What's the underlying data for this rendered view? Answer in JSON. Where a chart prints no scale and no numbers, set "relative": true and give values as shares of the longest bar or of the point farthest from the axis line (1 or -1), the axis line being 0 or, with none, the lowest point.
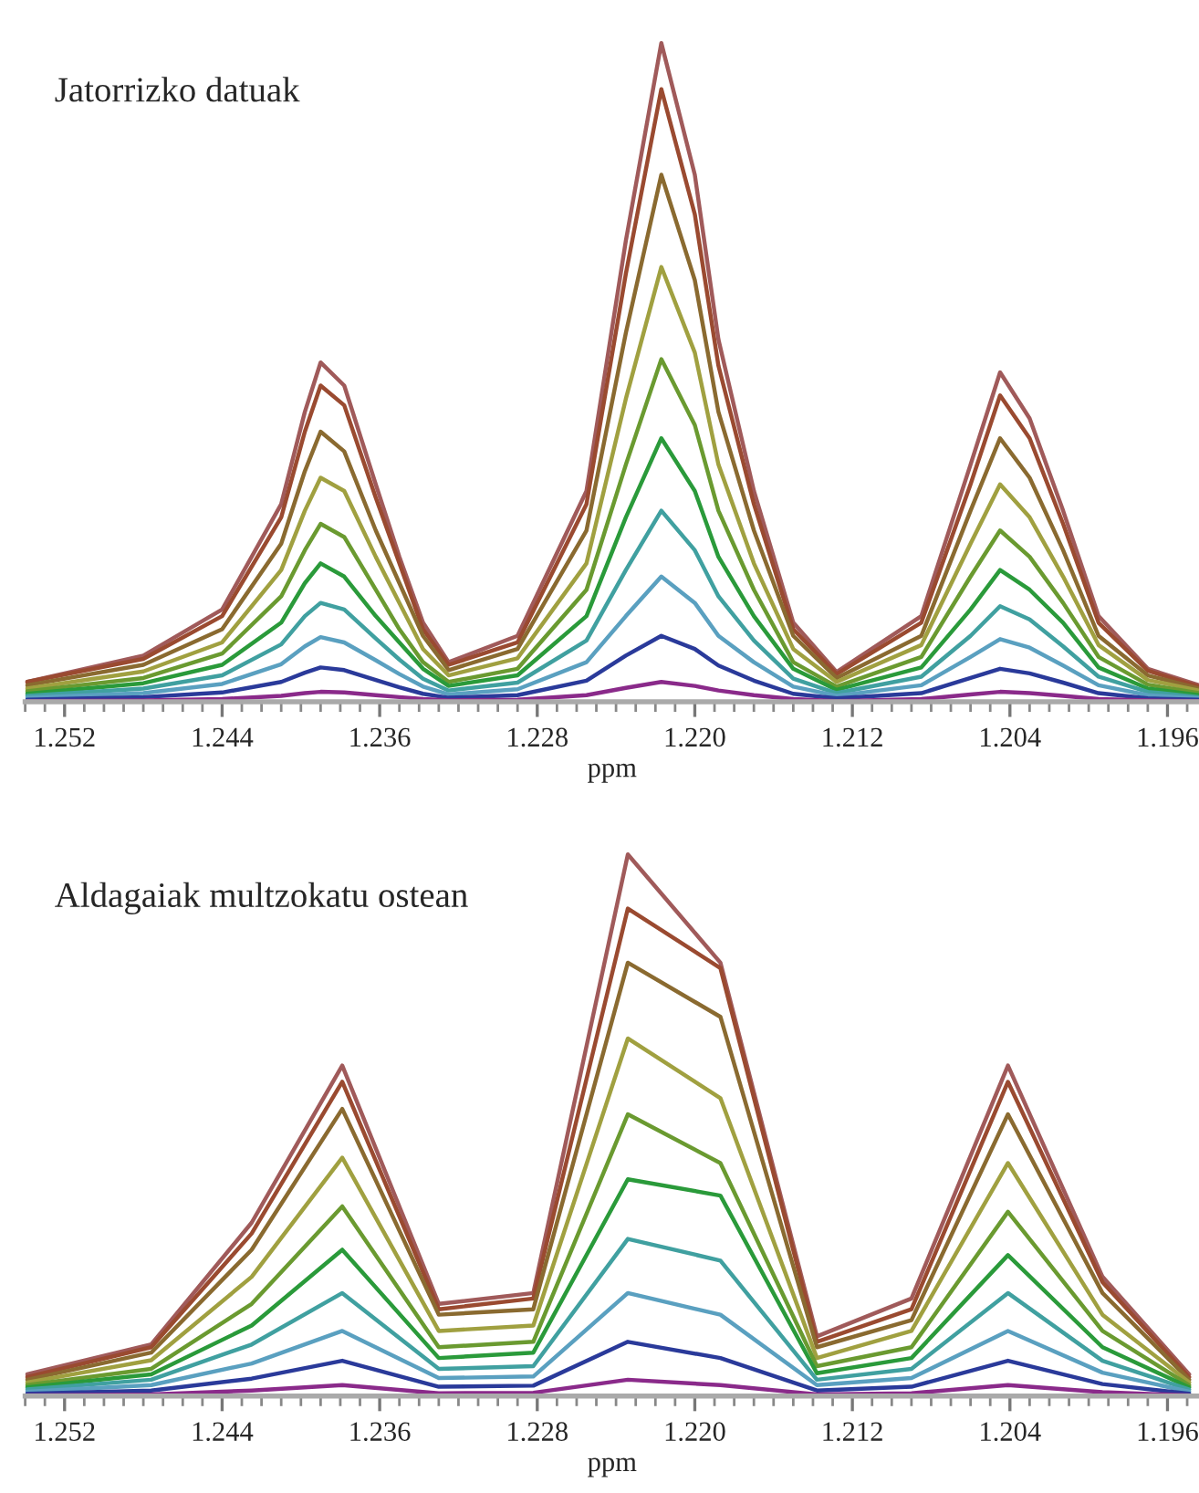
{
  "chart_data": [
    {
      "type": "line",
      "title": "Jatorrizko datuak",
      "xlabel": "ppm",
      "relative": true,
      "tick_labels": "x",
      "x": [
        1.2539,
        1.248,
        1.244,
        1.241,
        1.2398,
        1.239,
        1.2378,
        1.2362,
        1.235,
        1.2338,
        1.2325,
        1.229,
        1.2255,
        1.2235,
        1.2217,
        1.22,
        1.2188,
        1.217,
        1.215,
        1.2128,
        1.2085,
        1.206,
        1.2045,
        1.203,
        1.2013,
        1.1995,
        1.197,
        1.1944
      ],
      "xlim": [
        1.254,
        1.1944
      ],
      "xticks": [
        {
          "value": 1.254,
          "label": null
        },
        {
          "value": 1.253,
          "label": null
        },
        1.252,
        {
          "value": 1.251,
          "label": null
        },
        {
          "value": 1.25,
          "label": null
        },
        {
          "value": 1.249,
          "label": null
        },
        {
          "value": 1.248,
          "label": null
        },
        {
          "value": 1.247,
          "label": null
        },
        {
          "value": 1.246,
          "label": null
        },
        {
          "value": 1.245,
          "label": null
        },
        1.244,
        {
          "value": 1.243,
          "label": null
        },
        {
          "value": 1.242,
          "label": null
        },
        {
          "value": 1.241,
          "label": null
        },
        {
          "value": 1.24,
          "label": null
        },
        {
          "value": 1.239,
          "label": null
        },
        {
          "value": 1.238,
          "label": null
        },
        {
          "value": 1.237,
          "label": null
        },
        1.236,
        {
          "value": 1.235,
          "label": null
        },
        {
          "value": 1.234,
          "label": null
        },
        {
          "value": 1.233,
          "label": null
        },
        {
          "value": 1.232,
          "label": null
        },
        {
          "value": 1.231,
          "label": null
        },
        {
          "value": 1.23,
          "label": null
        },
        {
          "value": 1.229,
          "label": null
        },
        1.228,
        {
          "value": 1.227,
          "label": null
        },
        {
          "value": 1.226,
          "label": null
        },
        {
          "value": 1.225,
          "label": null
        },
        {
          "value": 1.224,
          "label": null
        },
        {
          "value": 1.223,
          "label": null
        },
        {
          "value": 1.222,
          "label": null
        },
        {
          "value": 1.221,
          "label": null
        },
        {
          "value": 1.22,
          "label": "1.220"
        },
        {
          "value": 1.219,
          "label": null
        },
        {
          "value": 1.218,
          "label": null
        },
        {
          "value": 1.217,
          "label": null
        },
        {
          "value": 1.216,
          "label": null
        },
        {
          "value": 1.215,
          "label": null
        },
        {
          "value": 1.214,
          "label": null
        },
        {
          "value": 1.213,
          "label": null
        },
        1.212,
        {
          "value": 1.211,
          "label": null
        },
        {
          "value": 1.21,
          "label": null
        },
        {
          "value": 1.209,
          "label": null
        },
        {
          "value": 1.208,
          "label": null
        },
        {
          "value": 1.207,
          "label": null
        },
        {
          "value": 1.206,
          "label": null
        },
        {
          "value": 1.205,
          "label": null
        },
        1.204,
        {
          "value": 1.203,
          "label": null
        },
        {
          "value": 1.202,
          "label": null
        },
        {
          "value": 1.201,
          "label": null
        },
        {
          "value": 1.2,
          "label": null
        },
        {
          "value": 1.199,
          "label": null
        },
        {
          "value": 1.198,
          "label": null
        },
        {
          "value": 1.197,
          "label": null
        },
        1.196,
        {
          "value": 1.195,
          "label": null
        }
      ],
      "series": [
        {
          "color": "#a05a5a",
          "values": [
            0.03,
            0.07,
            0.14,
            0.3,
            0.44,
            0.515,
            0.48,
            0.33,
            0.22,
            0.12,
            0.06,
            0.1,
            0.32,
            0.7,
            1.0,
            0.8,
            0.55,
            0.32,
            0.12,
            0.045,
            0.13,
            0.36,
            0.5,
            0.43,
            0.29,
            0.13,
            0.05,
            0.025
          ]
        },
        {
          "color": "#9a4a30",
          "values": [
            0.03,
            0.065,
            0.13,
            0.28,
            0.41,
            0.48,
            0.45,
            0.31,
            0.21,
            0.11,
            0.056,
            0.09,
            0.3,
            0.65,
            0.93,
            0.74,
            0.51,
            0.3,
            0.11,
            0.042,
            0.12,
            0.33,
            0.465,
            0.4,
            0.27,
            0.12,
            0.047,
            0.023
          ]
        },
        {
          "color": "#8a6a30",
          "values": [
            0.025,
            0.056,
            0.11,
            0.24,
            0.35,
            0.41,
            0.38,
            0.26,
            0.18,
            0.1,
            0.048,
            0.08,
            0.26,
            0.56,
            0.8,
            0.64,
            0.44,
            0.26,
            0.1,
            0.036,
            0.1,
            0.29,
            0.4,
            0.34,
            0.23,
            0.1,
            0.04,
            0.02
          ]
        },
        {
          "color": "#a0a040",
          "values": [
            0.02,
            0.046,
            0.09,
            0.2,
            0.29,
            0.34,
            0.32,
            0.22,
            0.15,
            0.08,
            0.04,
            0.066,
            0.21,
            0.46,
            0.66,
            0.53,
            0.36,
            0.21,
            0.08,
            0.03,
            0.086,
            0.24,
            0.33,
            0.28,
            0.19,
            0.086,
            0.033,
            0.017
          ]
        },
        {
          "color": "#6a9a30",
          "values": [
            0.016,
            0.036,
            0.073,
            0.16,
            0.23,
            0.27,
            0.25,
            0.17,
            0.11,
            0.06,
            0.03,
            0.05,
            0.17,
            0.36,
            0.52,
            0.42,
            0.29,
            0.17,
            0.06,
            0.023,
            0.068,
            0.19,
            0.26,
            0.22,
            0.15,
            0.068,
            0.026,
            0.013
          ]
        },
        {
          "color": "#2a9a3a",
          "values": [
            0.012,
            0.028,
            0.056,
            0.12,
            0.18,
            0.21,
            0.19,
            0.13,
            0.09,
            0.05,
            0.024,
            0.04,
            0.13,
            0.28,
            0.4,
            0.32,
            0.22,
            0.13,
            0.05,
            0.018,
            0.052,
            0.14,
            0.2,
            0.17,
            0.12,
            0.052,
            0.02,
            0.01
          ]
        },
        {
          "color": "#40a0a0",
          "values": [
            0.009,
            0.02,
            0.04,
            0.087,
            0.13,
            0.15,
            0.14,
            0.096,
            0.064,
            0.035,
            0.017,
            0.029,
            0.093,
            0.2,
            0.29,
            0.23,
            0.16,
            0.093,
            0.035,
            0.013,
            0.038,
            0.1,
            0.145,
            0.125,
            0.084,
            0.038,
            0.015,
            0.007
          ]
        },
        {
          "color": "#5aa0c0",
          "values": [
            0.006,
            0.013,
            0.027,
            0.057,
            0.084,
            0.098,
            0.09,
            0.063,
            0.042,
            0.023,
            0.011,
            0.019,
            0.06,
            0.13,
            0.19,
            0.15,
            0.1,
            0.06,
            0.023,
            0.009,
            0.025,
            0.068,
            0.095,
            0.082,
            0.055,
            0.025,
            0.01,
            0.005
          ]
        },
        {
          "color": "#2a3a9a",
          "values": [
            0.003,
            0.007,
            0.014,
            0.03,
            0.044,
            0.052,
            0.048,
            0.033,
            0.022,
            0.012,
            0.006,
            0.01,
            0.032,
            0.07,
            0.1,
            0.08,
            0.055,
            0.032,
            0.012,
            0.005,
            0.013,
            0.036,
            0.05,
            0.043,
            0.029,
            0.013,
            0.005,
            0.003
          ]
        },
        {
          "color": "#8a2a8a",
          "values": [
            0.001,
            0.002,
            0.004,
            0.009,
            0.013,
            0.015,
            0.014,
            0.01,
            0.007,
            0.004,
            0.002,
            0.003,
            0.01,
            0.021,
            0.03,
            0.024,
            0.017,
            0.01,
            0.004,
            0.001,
            0.004,
            0.011,
            0.015,
            0.013,
            0.009,
            0.004,
            0.002,
            0.001
          ]
        }
      ]
    },
    {
      "type": "line",
      "title": "Aldagaiak multzokatu ostean",
      "xlabel": "ppm",
      "relative": true,
      "tick_labels": "x",
      "x": [
        1.2539,
        1.2476,
        1.2425,
        1.2379,
        1.233,
        1.2282,
        1.2234,
        1.2187,
        1.2138,
        1.209,
        1.2041,
        1.1993,
        1.1949
      ],
      "xlim": [
        1.254,
        1.1944
      ],
      "xticks": [
        {
          "value": 1.254,
          "label": null
        },
        {
          "value": 1.253,
          "label": null
        },
        1.252,
        {
          "value": 1.251,
          "label": null
        },
        {
          "value": 1.25,
          "label": null
        },
        {
          "value": 1.249,
          "label": null
        },
        {
          "value": 1.248,
          "label": null
        },
        {
          "value": 1.247,
          "label": null
        },
        {
          "value": 1.246,
          "label": null
        },
        {
          "value": 1.245,
          "label": null
        },
        1.244,
        {
          "value": 1.243,
          "label": null
        },
        {
          "value": 1.242,
          "label": null
        },
        {
          "value": 1.241,
          "label": null
        },
        {
          "value": 1.24,
          "label": null
        },
        {
          "value": 1.239,
          "label": null
        },
        {
          "value": 1.238,
          "label": null
        },
        {
          "value": 1.237,
          "label": null
        },
        1.236,
        {
          "value": 1.235,
          "label": null
        },
        {
          "value": 1.234,
          "label": null
        },
        {
          "value": 1.233,
          "label": null
        },
        {
          "value": 1.232,
          "label": null
        },
        {
          "value": 1.231,
          "label": null
        },
        {
          "value": 1.23,
          "label": null
        },
        {
          "value": 1.229,
          "label": null
        },
        1.228,
        {
          "value": 1.227,
          "label": null
        },
        {
          "value": 1.226,
          "label": null
        },
        {
          "value": 1.225,
          "label": null
        },
        {
          "value": 1.224,
          "label": null
        },
        {
          "value": 1.223,
          "label": null
        },
        {
          "value": 1.222,
          "label": null
        },
        {
          "value": 1.221,
          "label": null
        },
        {
          "value": 1.22,
          "label": "1.220"
        },
        {
          "value": 1.219,
          "label": null
        },
        {
          "value": 1.218,
          "label": null
        },
        {
          "value": 1.217,
          "label": null
        },
        {
          "value": 1.216,
          "label": null
        },
        {
          "value": 1.215,
          "label": null
        },
        {
          "value": 1.214,
          "label": null
        },
        {
          "value": 1.213,
          "label": null
        },
        1.212,
        {
          "value": 1.211,
          "label": null
        },
        {
          "value": 1.21,
          "label": null
        },
        {
          "value": 1.209,
          "label": null
        },
        {
          "value": 1.208,
          "label": null
        },
        {
          "value": 1.207,
          "label": null
        },
        {
          "value": 1.206,
          "label": null
        },
        {
          "value": 1.205,
          "label": null
        },
        1.204,
        {
          "value": 1.203,
          "label": null
        },
        {
          "value": 1.202,
          "label": null
        },
        {
          "value": 1.201,
          "label": null
        },
        {
          "value": 1.2,
          "label": null
        },
        {
          "value": 1.199,
          "label": null
        },
        {
          "value": 1.198,
          "label": null
        },
        {
          "value": 1.197,
          "label": null
        },
        1.196,
        {
          "value": 1.195,
          "label": null
        }
      ],
      "series": [
        {
          "color": "#a05a5a",
          "values": [
            0.04,
            0.095,
            0.32,
            0.61,
            0.17,
            0.19,
            1.0,
            0.8,
            0.11,
            0.18,
            0.61,
            0.22,
            0.04
          ]
        },
        {
          "color": "#9a4a30",
          "values": [
            0.035,
            0.09,
            0.3,
            0.58,
            0.16,
            0.18,
            0.9,
            0.79,
            0.1,
            0.16,
            0.58,
            0.21,
            0.035
          ]
        },
        {
          "color": "#8a6a30",
          "values": [
            0.03,
            0.08,
            0.27,
            0.53,
            0.15,
            0.16,
            0.8,
            0.7,
            0.09,
            0.14,
            0.52,
            0.19,
            0.03
          ]
        },
        {
          "color": "#a0a040",
          "values": [
            0.025,
            0.066,
            0.22,
            0.44,
            0.12,
            0.13,
            0.66,
            0.55,
            0.07,
            0.12,
            0.43,
            0.15,
            0.025
          ]
        },
        {
          "color": "#6a9a30",
          "values": [
            0.02,
            0.05,
            0.17,
            0.35,
            0.09,
            0.1,
            0.52,
            0.43,
            0.055,
            0.09,
            0.34,
            0.12,
            0.02
          ]
        },
        {
          "color": "#2a9a3a",
          "values": [
            0.016,
            0.04,
            0.13,
            0.27,
            0.07,
            0.08,
            0.4,
            0.37,
            0.042,
            0.07,
            0.26,
            0.09,
            0.016
          ]
        },
        {
          "color": "#40a0a0",
          "values": [
            0.012,
            0.03,
            0.095,
            0.19,
            0.05,
            0.055,
            0.29,
            0.25,
            0.03,
            0.05,
            0.19,
            0.065,
            0.012
          ]
        },
        {
          "color": "#5aa0c0",
          "values": [
            0.008,
            0.02,
            0.06,
            0.12,
            0.033,
            0.036,
            0.19,
            0.15,
            0.02,
            0.033,
            0.12,
            0.043,
            0.008
          ]
        },
        {
          "color": "#2a3a9a",
          "values": [
            0.004,
            0.01,
            0.032,
            0.065,
            0.017,
            0.019,
            0.1,
            0.07,
            0.01,
            0.017,
            0.065,
            0.022,
            0.004
          ]
        },
        {
          "color": "#8a2a8a",
          "values": [
            0.001,
            0.003,
            0.01,
            0.02,
            0.005,
            0.006,
            0.03,
            0.02,
            0.003,
            0.005,
            0.02,
            0.007,
            0.001
          ]
        }
      ]
    }
  ]
}
